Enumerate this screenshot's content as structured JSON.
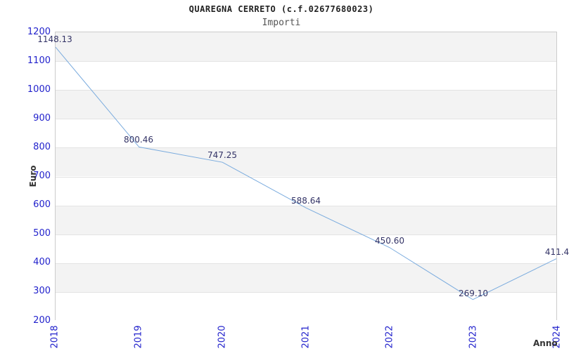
{
  "chart_data": {
    "type": "line",
    "title": "QUAREGNA CERRETO (c.f.02677680023)",
    "subtitle": "Importi",
    "xlabel": "Anno",
    "ylabel": "Euro",
    "categories": [
      "2018",
      "2019",
      "2020",
      "2021",
      "2022",
      "2023",
      "2024"
    ],
    "series": [
      {
        "name": "Importi",
        "values": [
          1148.13,
          800.46,
          747.25,
          588.64,
          450.6,
          269.1,
          411.4
        ],
        "point_labels": [
          "1148.13",
          "800.46",
          "747.25",
          "588.64",
          "450.60",
          "269.10",
          "411.4"
        ]
      }
    ],
    "ylim": [
      200,
      1200
    ],
    "ytick_step": 100,
    "ytick_labels": [
      "1200",
      "1100",
      "1000",
      "900",
      "800",
      "700",
      "600",
      "500",
      "400",
      "300",
      "200"
    ],
    "grid": "horizontal-bands",
    "legend_position": "none",
    "colors": {
      "line": "#7aabde",
      "tick_label": "#2222cc",
      "data_label": "#333366",
      "band_fill": "#f3f3f3",
      "gridline": "#e3e3e3",
      "plot_border": "#cccccc",
      "axis_title": "#333333",
      "title": "#222222",
      "subtitle": "#555555"
    }
  }
}
